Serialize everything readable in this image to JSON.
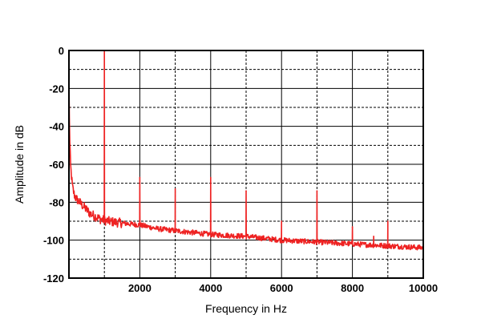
{
  "chart_data": {
    "type": "line",
    "title": "",
    "xlabel": "Frequency  in Hz",
    "ylabel": "Amplitude in dB",
    "xlim": [
      0,
      10000
    ],
    "ylim": [
      -120,
      0
    ],
    "x_ticks": [
      2000,
      4000,
      6000,
      8000,
      10000
    ],
    "x_tick_labels": [
      "2000",
      "4000",
      "6000",
      "8000",
      "10000"
    ],
    "y_ticks": [
      0,
      -20,
      -40,
      -60,
      -80,
      -100,
      -120
    ],
    "y_tick_labels": [
      "0",
      "-20",
      "-40",
      "-60",
      "-80",
      "-100",
      "-120"
    ],
    "x_minor_grid": [
      1000,
      3000,
      5000,
      7000,
      9000
    ],
    "y_minor_grid": [
      -10,
      -30,
      -50,
      -70,
      -90,
      -110
    ],
    "grid": true,
    "legend": "none",
    "series": [
      {
        "color": "#ee2222",
        "noise_floor": [
          [
            0,
            -15
          ],
          [
            10,
            -32
          ],
          [
            25,
            -50
          ],
          [
            50,
            -62
          ],
          [
            100,
            -72
          ],
          [
            150,
            -76
          ],
          [
            200,
            -78
          ],
          [
            300,
            -80
          ],
          [
            400,
            -82
          ],
          [
            500,
            -84
          ],
          [
            600,
            -86
          ],
          [
            700,
            -87
          ],
          [
            800,
            -88
          ],
          [
            900,
            -89
          ],
          [
            1100,
            -90
          ],
          [
            1500,
            -91
          ],
          [
            2000,
            -92
          ],
          [
            2500,
            -94
          ],
          [
            3000,
            -95
          ],
          [
            3500,
            -96
          ],
          [
            4000,
            -97
          ],
          [
            5000,
            -98
          ],
          [
            6000,
            -100
          ],
          [
            7000,
            -101
          ],
          [
            8000,
            -102
          ],
          [
            9000,
            -103
          ],
          [
            10000,
            -104
          ]
        ],
        "peaks": [
          {
            "x": 1000,
            "y": 0
          },
          {
            "x": 2000,
            "y": -67
          },
          {
            "x": 3000,
            "y": -73
          },
          {
            "x": 4000,
            "y": -67
          },
          {
            "x": 5000,
            "y": -74
          },
          {
            "x": 6000,
            "y": -90
          },
          {
            "x": 7000,
            "y": -74
          },
          {
            "x": 8000,
            "y": -93
          },
          {
            "x": 8600,
            "y": -98
          },
          {
            "x": 9000,
            "y": -90
          },
          {
            "x": 10000,
            "y": -96
          }
        ]
      }
    ]
  }
}
